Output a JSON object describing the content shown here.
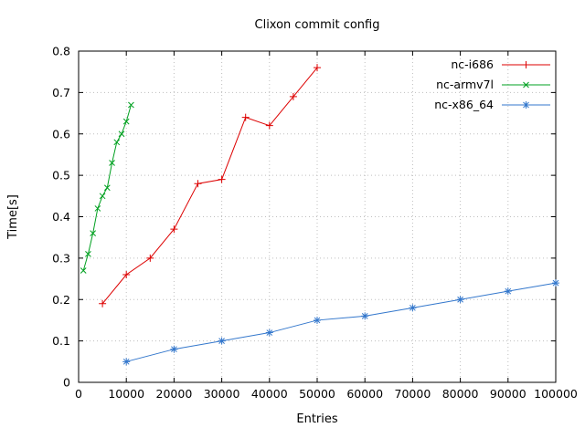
{
  "page": {
    "background": "#ffffff"
  },
  "chart_data": {
    "type": "line",
    "title": "Clixon commit config",
    "xlabel": "Entries",
    "ylabel": "Time[s]",
    "xlim": [
      0,
      100000
    ],
    "ylim": [
      0,
      0.8
    ],
    "xticks": [
      0,
      10000,
      20000,
      30000,
      40000,
      50000,
      60000,
      70000,
      80000,
      90000,
      100000
    ],
    "xticklabels": [
      "0",
      "10000",
      "20000",
      "30000",
      "40000",
      "50000",
      "60000",
      "70000",
      "80000",
      "90000",
      "100000"
    ],
    "yticks": [
      0,
      0.1,
      0.2,
      0.3,
      0.4,
      0.5,
      0.6,
      0.7,
      0.8
    ],
    "yticklabels": [
      "0",
      "0.1",
      "0.2",
      "0.3",
      "0.4",
      "0.5",
      "0.6",
      "0.7",
      "0.8"
    ],
    "grid": true,
    "grid_style": "dotted",
    "grid_color": "#bfbfbf",
    "border_color": "#000000",
    "legend_position": "top-right-inside",
    "series": [
      {
        "name": "nc-i686",
        "color": "#dd0000",
        "marker": "plus",
        "x": [
          5000,
          10000,
          15000,
          20000,
          25000,
          30000,
          35000,
          40000,
          45000,
          50000
        ],
        "y": [
          0.19,
          0.26,
          0.3,
          0.37,
          0.48,
          0.49,
          0.64,
          0.62,
          0.69,
          0.76
        ]
      },
      {
        "name": "nc-armv7l",
        "color": "#00a020",
        "marker": "cross",
        "x": [
          1000,
          2000,
          3000,
          4000,
          5000,
          6000,
          7000,
          8000,
          9000,
          10000,
          11000
        ],
        "y": [
          0.27,
          0.31,
          0.36,
          0.42,
          0.45,
          0.47,
          0.53,
          0.58,
          0.6,
          0.63,
          0.67
        ]
      },
      {
        "name": "nc-x86_64",
        "color": "#3377cc",
        "marker": "star",
        "x": [
          10000,
          20000,
          30000,
          40000,
          50000,
          60000,
          70000,
          80000,
          90000,
          100000
        ],
        "y": [
          0.05,
          0.08,
          0.1,
          0.12,
          0.15,
          0.16,
          0.18,
          0.2,
          0.22,
          0.24
        ]
      }
    ]
  }
}
